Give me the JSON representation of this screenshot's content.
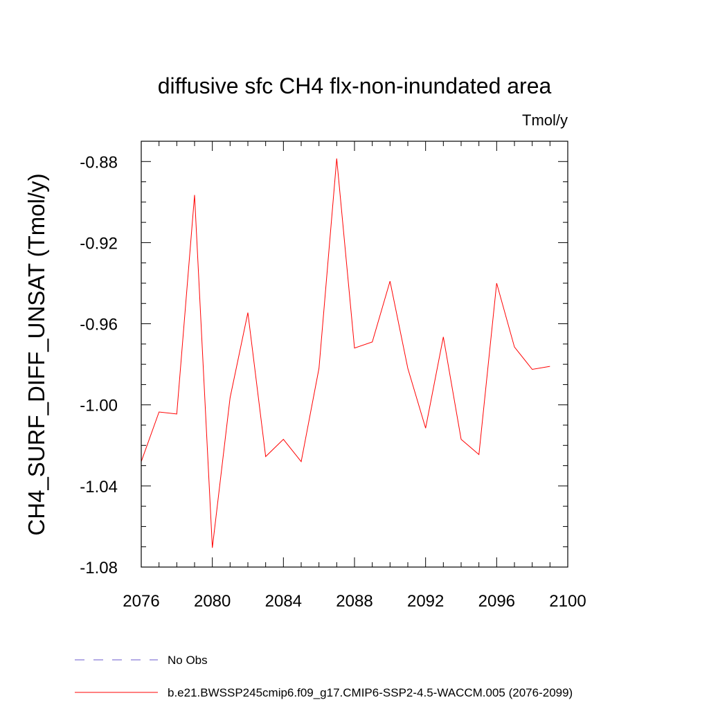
{
  "chart_data": {
    "type": "line",
    "title": "diffusive sfc CH4 flx-non-inundated area",
    "units_label": "Tmol/y",
    "ylabel": "CH4_SURF_DIFF_UNSAT  (Tmol/y)",
    "xlabel": "",
    "xlim": [
      2076,
      2100
    ],
    "ylim": [
      -1.08,
      -0.87
    ],
    "xticks": [
      2076,
      2080,
      2084,
      2088,
      2092,
      2096,
      2100
    ],
    "xtick_labels": [
      "2076",
      "2080",
      "2084",
      "2088",
      "2092",
      "2096",
      "2100"
    ],
    "yticks": [
      -0.88,
      -0.92,
      -0.96,
      -1.0,
      -1.04,
      -1.08
    ],
    "ytick_labels": [
      "-0.88",
      "-0.92",
      "-0.96",
      "-1.00",
      "-1.04",
      "-1.08"
    ],
    "series": [
      {
        "name": "b.e21.BWSSP245cmip6.f09_g17.CMIP6-SSP2-4.5-WACCM.005 (2076-2099)",
        "color": "#ff0000",
        "style": "solid",
        "x": [
          2076,
          2077,
          2078,
          2079,
          2080,
          2081,
          2082,
          2083,
          2084,
          2085,
          2086,
          2087,
          2088,
          2089,
          2090,
          2091,
          2092,
          2093,
          2094,
          2095,
          2096,
          2097,
          2098,
          2099
        ],
        "values": [
          -1.028,
          -1.0035,
          -1.0045,
          -0.8965,
          -1.0705,
          -0.9965,
          -0.9545,
          -1.0255,
          -1.017,
          -1.028,
          -0.982,
          -0.8785,
          -0.972,
          -0.969,
          -0.939,
          -0.982,
          -1.0115,
          -0.9665,
          -1.017,
          -1.0245,
          -0.94,
          -0.9715,
          -0.9825,
          -0.981
        ]
      }
    ],
    "legend": [
      {
        "label": "No Obs",
        "color": "#6a5acd",
        "style": "dashed"
      },
      {
        "label": "b.e21.BWSSP245cmip6.f09_g17.CMIP6-SSP2-4.5-WACCM.005 (2076-2099)",
        "color": "#ff0000",
        "style": "solid"
      }
    ]
  }
}
